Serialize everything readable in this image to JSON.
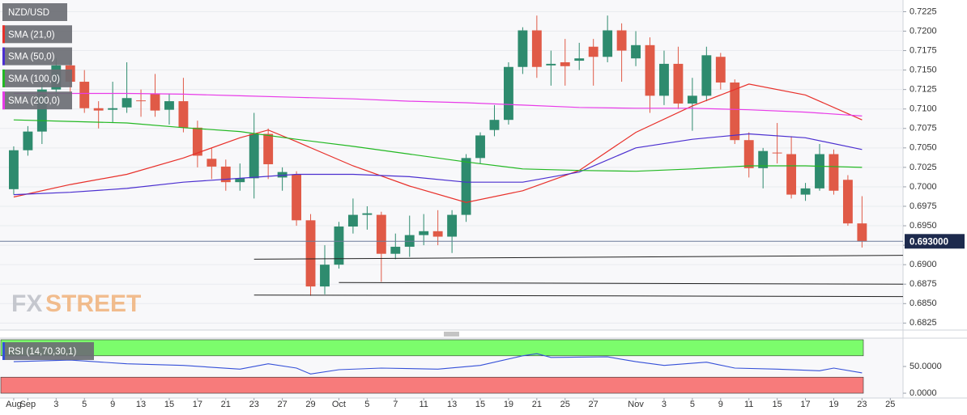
{
  "chart_data": [
    {
      "type": "candlestick",
      "title": "NZD/USD",
      "up_color": "#2e8b6e",
      "down_color": "#e05a47",
      "open": [
        0.6997,
        0.7047,
        0.7071,
        0.7125,
        0.7156,
        0.7135,
        0.7101,
        0.7099,
        0.7102,
        0.7111,
        0.712,
        0.7099,
        0.711,
        0.7076,
        0.7036,
        0.7026,
        0.7006,
        0.7011,
        0.7068,
        0.7012,
        0.7016,
        0.6957,
        0.6872,
        0.69,
        0.6949,
        0.6964,
        0.6964,
        0.6914,
        0.6923,
        0.6938,
        0.6943,
        0.6936,
        0.6964,
        0.7037,
        0.7073,
        0.7086,
        0.7154,
        0.7201,
        0.7156,
        0.716,
        0.7162,
        0.718,
        0.7167,
        0.7201,
        0.7165,
        0.7182,
        0.7117,
        0.7158,
        0.7107,
        0.7117,
        0.7167,
        0.7134,
        0.706,
        0.7024,
        0.7044,
        0.7042,
        0.699,
        0.6998,
        0.7042,
        0.7009,
        0.6953
      ],
      "high": [
        0.7052,
        0.7078,
        0.714,
        0.7165,
        0.7162,
        0.715,
        0.711,
        0.7135,
        0.716,
        0.7125,
        0.7145,
        0.712,
        0.714,
        0.7085,
        0.705,
        0.7035,
        0.703,
        0.7095,
        0.7075,
        0.7025,
        0.702,
        0.6965,
        0.6925,
        0.6955,
        0.6985,
        0.6975,
        0.6968,
        0.694,
        0.6963,
        0.6965,
        0.697,
        0.697,
        0.7042,
        0.707,
        0.7105,
        0.716,
        0.7205,
        0.722,
        0.7175,
        0.719,
        0.7185,
        0.719,
        0.722,
        0.721,
        0.72,
        0.7192,
        0.7175,
        0.718,
        0.714,
        0.718,
        0.7172,
        0.7138,
        0.707,
        0.705,
        0.7082,
        0.7065,
        0.7005,
        0.7055,
        0.7048,
        0.7015,
        0.6988
      ],
      "low": [
        0.699,
        0.704,
        0.7055,
        0.7115,
        0.712,
        0.7095,
        0.7075,
        0.7082,
        0.7095,
        0.709,
        0.709,
        0.708,
        0.707,
        0.7025,
        0.701,
        0.6995,
        0.6995,
        0.6985,
        0.701,
        0.6995,
        0.695,
        0.686,
        0.6862,
        0.6895,
        0.694,
        0.6945,
        0.6878,
        0.6907,
        0.691,
        0.6925,
        0.6925,
        0.6915,
        0.6955,
        0.703,
        0.7065,
        0.708,
        0.7145,
        0.714,
        0.713,
        0.713,
        0.715,
        0.713,
        0.716,
        0.7135,
        0.7155,
        0.7095,
        0.7105,
        0.71,
        0.7072,
        0.711,
        0.7125,
        0.7055,
        0.7012,
        0.6998,
        0.703,
        0.6985,
        0.6982,
        0.6995,
        0.699,
        0.695,
        0.6922
      ],
      "close": [
        0.7047,
        0.7071,
        0.7125,
        0.7156,
        0.7135,
        0.7101,
        0.7098,
        0.7101,
        0.7114,
        0.711,
        0.7098,
        0.711,
        0.7076,
        0.704,
        0.7026,
        0.7006,
        0.7011,
        0.7068,
        0.7029,
        0.7019,
        0.6957,
        0.6872,
        0.69,
        0.6949,
        0.6964,
        0.6966,
        0.6914,
        0.6923,
        0.6938,
        0.6943,
        0.6936,
        0.6964,
        0.7037,
        0.7066,
        0.7086,
        0.7154,
        0.7201,
        0.7154,
        0.7158,
        0.7155,
        0.7165,
        0.7167,
        0.7201,
        0.7175,
        0.7182,
        0.7117,
        0.7158,
        0.7107,
        0.7117,
        0.7169,
        0.7134,
        0.706,
        0.7024,
        0.7046,
        0.7043,
        0.699,
        0.6998,
        0.7042,
        0.6995,
        0.6953,
        0.693
      ],
      "series": [
        {
          "name": "SMA (21,0)",
          "color": "#e8302a",
          "x": [
            0,
            4,
            8,
            12,
            16,
            18,
            20,
            24,
            28,
            32,
            36,
            40,
            44,
            48,
            52,
            56,
            60
          ],
          "values": [
            0.6987,
            0.7003,
            0.7016,
            0.7037,
            0.7063,
            0.7073,
            0.7058,
            0.7027,
            0.7001,
            0.698,
            0.6995,
            0.7021,
            0.707,
            0.7104,
            0.7132,
            0.7118,
            0.7086
          ]
        },
        {
          "name": "SMA (50,0)",
          "color": "#4b2fd0",
          "x": [
            0,
            4,
            8,
            12,
            16,
            20,
            24,
            28,
            32,
            36,
            40,
            44,
            48,
            52,
            56,
            60
          ],
          "values": [
            0.699,
            0.6993,
            0.6998,
            0.7006,
            0.7011,
            0.7016,
            0.7016,
            0.7013,
            0.7006,
            0.7006,
            0.7019,
            0.705,
            0.7061,
            0.7068,
            0.7063,
            0.7048
          ]
        },
        {
          "name": "SMA (100,0)",
          "color": "#22b822",
          "x": [
            0,
            4,
            8,
            12,
            16,
            20,
            24,
            28,
            32,
            36,
            40,
            44,
            48,
            52,
            56,
            60
          ],
          "values": [
            0.7086,
            0.7084,
            0.7082,
            0.7076,
            0.7071,
            0.7061,
            0.7052,
            0.7042,
            0.7032,
            0.7023,
            0.7021,
            0.702,
            0.7023,
            0.7027,
            0.7027,
            0.7025
          ]
        },
        {
          "name": "SMA (200,0)",
          "color": "#e83be8",
          "x": [
            0,
            4,
            8,
            12,
            16,
            20,
            24,
            28,
            32,
            36,
            40,
            44,
            48,
            52,
            56,
            60
          ],
          "values": [
            0.712,
            0.712,
            0.712,
            0.7119,
            0.7117,
            0.7115,
            0.7113,
            0.711,
            0.7108,
            0.7105,
            0.7102,
            0.7101,
            0.7101,
            0.7099,
            0.7096,
            0.7091
          ]
        }
      ],
      "trendlines": [
        {
          "x": [
            17,
            62.9
          ],
          "y": [
            0.6907,
            0.6912
          ]
        },
        {
          "x": [
            23,
            62.9
          ],
          "y": [
            0.6877,
            0.6875
          ]
        },
        {
          "x": [
            17,
            62.9
          ],
          "y": [
            0.6861,
            0.6859
          ]
        }
      ],
      "last_price": {
        "value": 0.693,
        "label": "0.693000"
      },
      "xlim": [
        -0.97,
        62.9
      ],
      "ylim": [
        0.6816,
        0.724
      ],
      "yticks": [
        0.6825,
        {
          "value": 0.685,
          "label": "0.6850"
        },
        0.6875,
        {
          "value": 0.69,
          "label": "0.6900"
        },
        0.6925,
        {
          "value": 0.695,
          "label": "0.6950"
        },
        0.6975,
        {
          "value": 0.7,
          "label": "0.7000"
        },
        0.7025,
        {
          "value": 0.705,
          "label": "0.7050"
        },
        0.7075,
        {
          "value": 0.71,
          "label": "0.7100"
        },
        0.7125,
        {
          "value": 0.715,
          "label": "0.7150"
        },
        0.7175,
        {
          "value": 0.72,
          "label": "0.7200"
        },
        0.7225
      ],
      "grid": true,
      "watermark": {
        "prefix": "FX",
        "suffix": "STREET"
      }
    },
    {
      "type": "line",
      "title": "RSI (14,70,30,1)",
      "color": "#3550d8",
      "x": [
        0,
        4,
        8,
        12,
        16,
        18,
        20,
        21,
        23,
        26,
        30,
        33,
        36,
        37,
        38,
        42,
        44,
        46,
        49,
        51,
        54,
        57,
        58,
        60
      ],
      "values": [
        59,
        62,
        55,
        52,
        45,
        55,
        47,
        36,
        44,
        47,
        45,
        52,
        70,
        74,
        67,
        68,
        59,
        52,
        58,
        47,
        45,
        42,
        47,
        38
      ],
      "overbought": [
        70,
        100
      ],
      "overbought_color": "#7cfc6c",
      "oversold": [
        0,
        30
      ],
      "oversold_color": "#f77b7b",
      "xlim": [
        -0.97,
        62.9
      ],
      "ylim": [
        -9,
        103
      ],
      "yticks": [
        {
          "value": 50,
          "label": "50.0000"
        },
        {
          "value": 0,
          "label": "0.0000"
        }
      ],
      "xticks": [
        {
          "value": 0,
          "label": "Aug"
        },
        {
          "value": 1,
          "label": "Sep"
        },
        3,
        5,
        {
          "value": 7,
          "label": "9"
        },
        {
          "value": 9,
          "label": "13"
        },
        {
          "value": 11,
          "label": "15"
        },
        {
          "value": 13,
          "label": "17"
        },
        {
          "value": 15,
          "label": "21"
        },
        {
          "value": 17,
          "label": "23"
        },
        {
          "value": 19,
          "label": "27"
        },
        {
          "value": 21,
          "label": "29"
        },
        {
          "value": 23,
          "label": "Oct"
        },
        {
          "value": 25,
          "label": "5"
        },
        {
          "value": 27,
          "label": "7"
        },
        {
          "value": 29,
          "label": "11"
        },
        {
          "value": 31,
          "label": "13"
        },
        {
          "value": 33,
          "label": "15"
        },
        {
          "value": 35,
          "label": "19"
        },
        {
          "value": 37,
          "label": "21"
        },
        {
          "value": 39,
          "label": "25"
        },
        {
          "value": 41,
          "label": "27"
        },
        {
          "value": 44,
          "label": "Nov"
        },
        {
          "value": 46,
          "label": "3"
        },
        {
          "value": 48,
          "label": "5"
        },
        {
          "value": 50,
          "label": "9"
        },
        {
          "value": 52,
          "label": "11"
        },
        {
          "value": 54,
          "label": "15"
        },
        {
          "value": 56,
          "label": "17"
        },
        {
          "value": 58,
          "label": "19"
        },
        {
          "value": 60,
          "label": "23"
        },
        {
          "value": 62,
          "label": "25"
        }
      ]
    }
  ]
}
